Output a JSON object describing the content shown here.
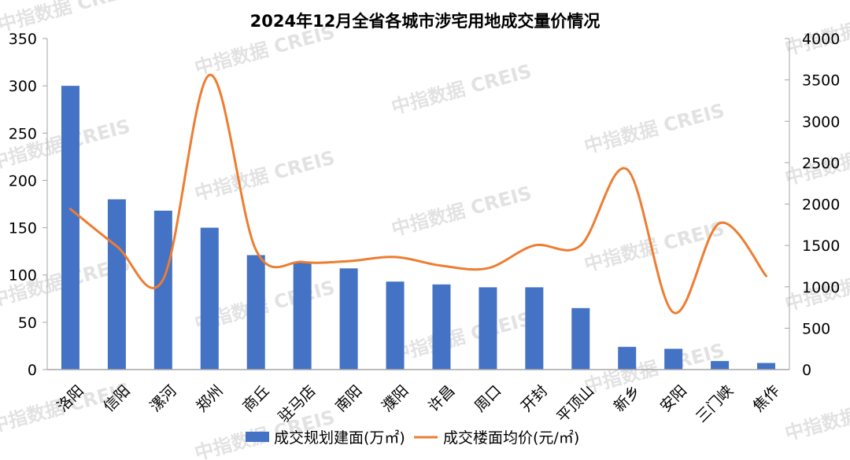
{
  "chart_data": {
    "type": "bar+line",
    "title": "2024年12月全省各城市涉宅用地成交量价情况",
    "categories": [
      "洛阳",
      "信阳",
      "漯河",
      "郑州",
      "商丘",
      "驻马店",
      "南阳",
      "濮阳",
      "许昌",
      "周口",
      "开封",
      "平顶山",
      "新乡",
      "安阳",
      "三门峡",
      "焦作"
    ],
    "series": [
      {
        "name": "成交规划建面(万㎡)",
        "type": "bar",
        "axis": "left",
        "color": "#4472C4",
        "values": [
          300,
          180,
          168,
          150,
          121,
          113,
          107,
          93,
          90,
          87,
          87,
          65,
          24,
          22,
          9,
          7
        ]
      },
      {
        "name": "成交楼面均价(元/㎡)",
        "type": "line",
        "axis": "right",
        "smooth": true,
        "color": "#ED7D31",
        "values": [
          1940,
          1490,
          1090,
          3560,
          1445,
          1300,
          1310,
          1360,
          1255,
          1225,
          1500,
          1500,
          2420,
          690,
          1770,
          1130
        ]
      }
    ],
    "y_left": {
      "min": 0,
      "max": 350,
      "step": 50,
      "ticks": [
        "0",
        "50",
        "100",
        "150",
        "200",
        "250",
        "300",
        "350"
      ]
    },
    "y_right": {
      "min": 0,
      "max": 4000,
      "step": 500,
      "ticks": [
        "0",
        "500",
        "1000",
        "1500",
        "2000",
        "2500",
        "3000",
        "3500",
        "4000"
      ]
    },
    "xlabel": "",
    "ylabel_left": "",
    "ylabel_right": "",
    "grid": false,
    "legend_position": "bottom"
  },
  "watermark": "中指数据 CREIS"
}
